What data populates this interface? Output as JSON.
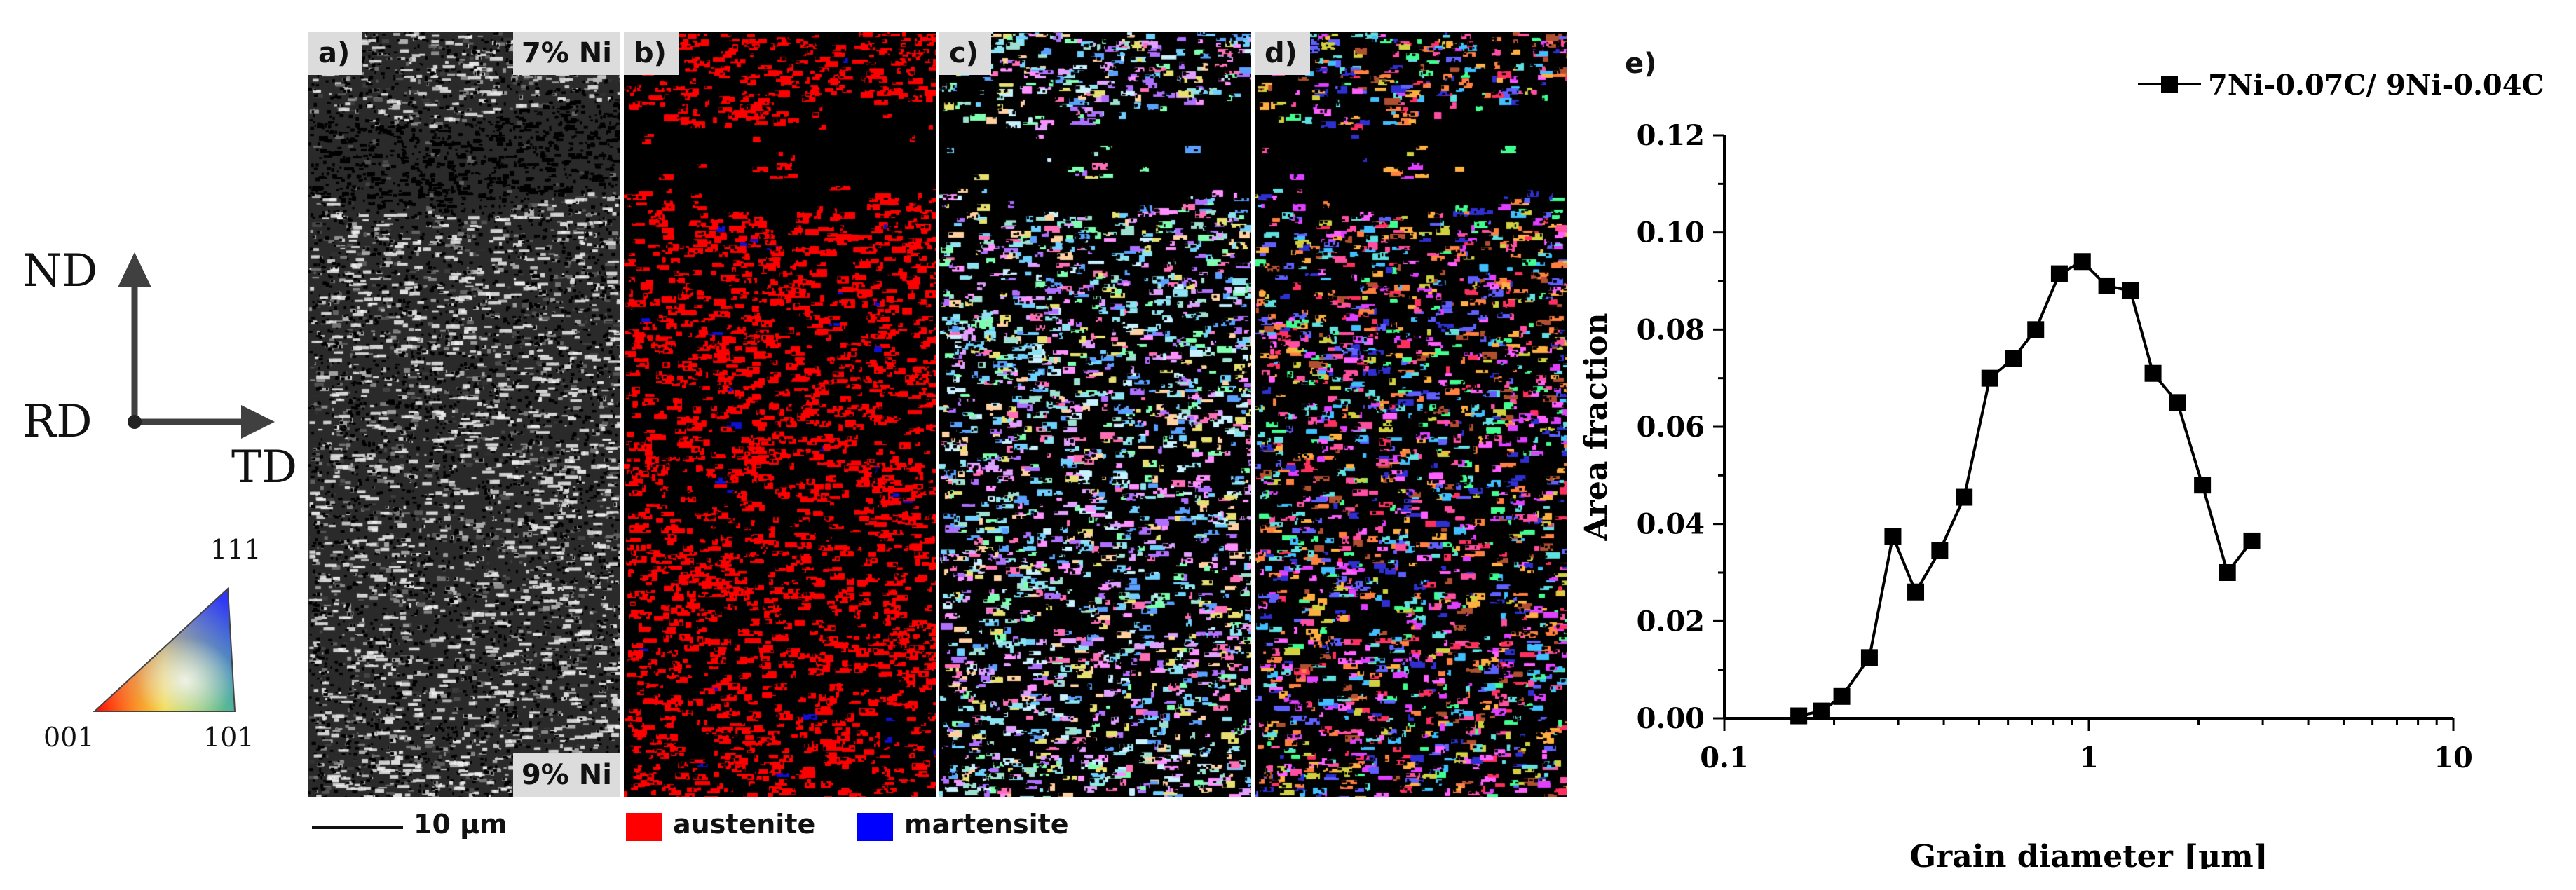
{
  "panels": [
    {
      "label": "a)",
      "top_right": "7% Ni",
      "bottom_right": "9% Ni"
    },
    {
      "label": "b)"
    },
    {
      "label": "c)"
    },
    {
      "label": "d)"
    },
    {
      "label": "e)"
    }
  ],
  "axes": {
    "nd": "ND",
    "rd": "RD",
    "td": "TD"
  },
  "ipf": {
    "top": "111",
    "left": "001",
    "right": "101"
  },
  "scale_bar": "10 µm",
  "phase_legend": [
    {
      "name": "austenite",
      "color": "#ff0000"
    },
    {
      "name": "martensite",
      "color": "#0000ff"
    }
  ],
  "chart_data": {
    "type": "line",
    "title": "",
    "xlabel": "Grain diameter [µm]",
    "ylabel": "Area fraction",
    "xscale": "log",
    "xlim": [
      0.1,
      10
    ],
    "ylim": [
      0,
      0.12
    ],
    "xticks": [
      "0.1",
      "1",
      "10"
    ],
    "yticks": [
      "0.00",
      "0.02",
      "0.04",
      "0.06",
      "0.08",
      "0.10",
      "0.12"
    ],
    "legend_position": "top-right",
    "series": [
      {
        "name": "7Ni-0.07C/ 9Ni-0.04C",
        "marker": "square",
        "color": "#000000",
        "x": [
          0.16,
          0.185,
          0.21,
          0.25,
          0.29,
          0.335,
          0.39,
          0.455,
          0.535,
          0.62,
          0.715,
          0.83,
          0.96,
          1.12,
          1.3,
          1.5,
          1.75,
          2.05,
          2.4,
          2.8
        ],
        "y": [
          0.0005,
          0.0015,
          0.0045,
          0.0125,
          0.0375,
          0.026,
          0.0345,
          0.0455,
          0.07,
          0.074,
          0.08,
          0.0915,
          0.094,
          0.089,
          0.088,
          0.071,
          0.065,
          0.048,
          0.03,
          0.0365
        ]
      }
    ]
  }
}
